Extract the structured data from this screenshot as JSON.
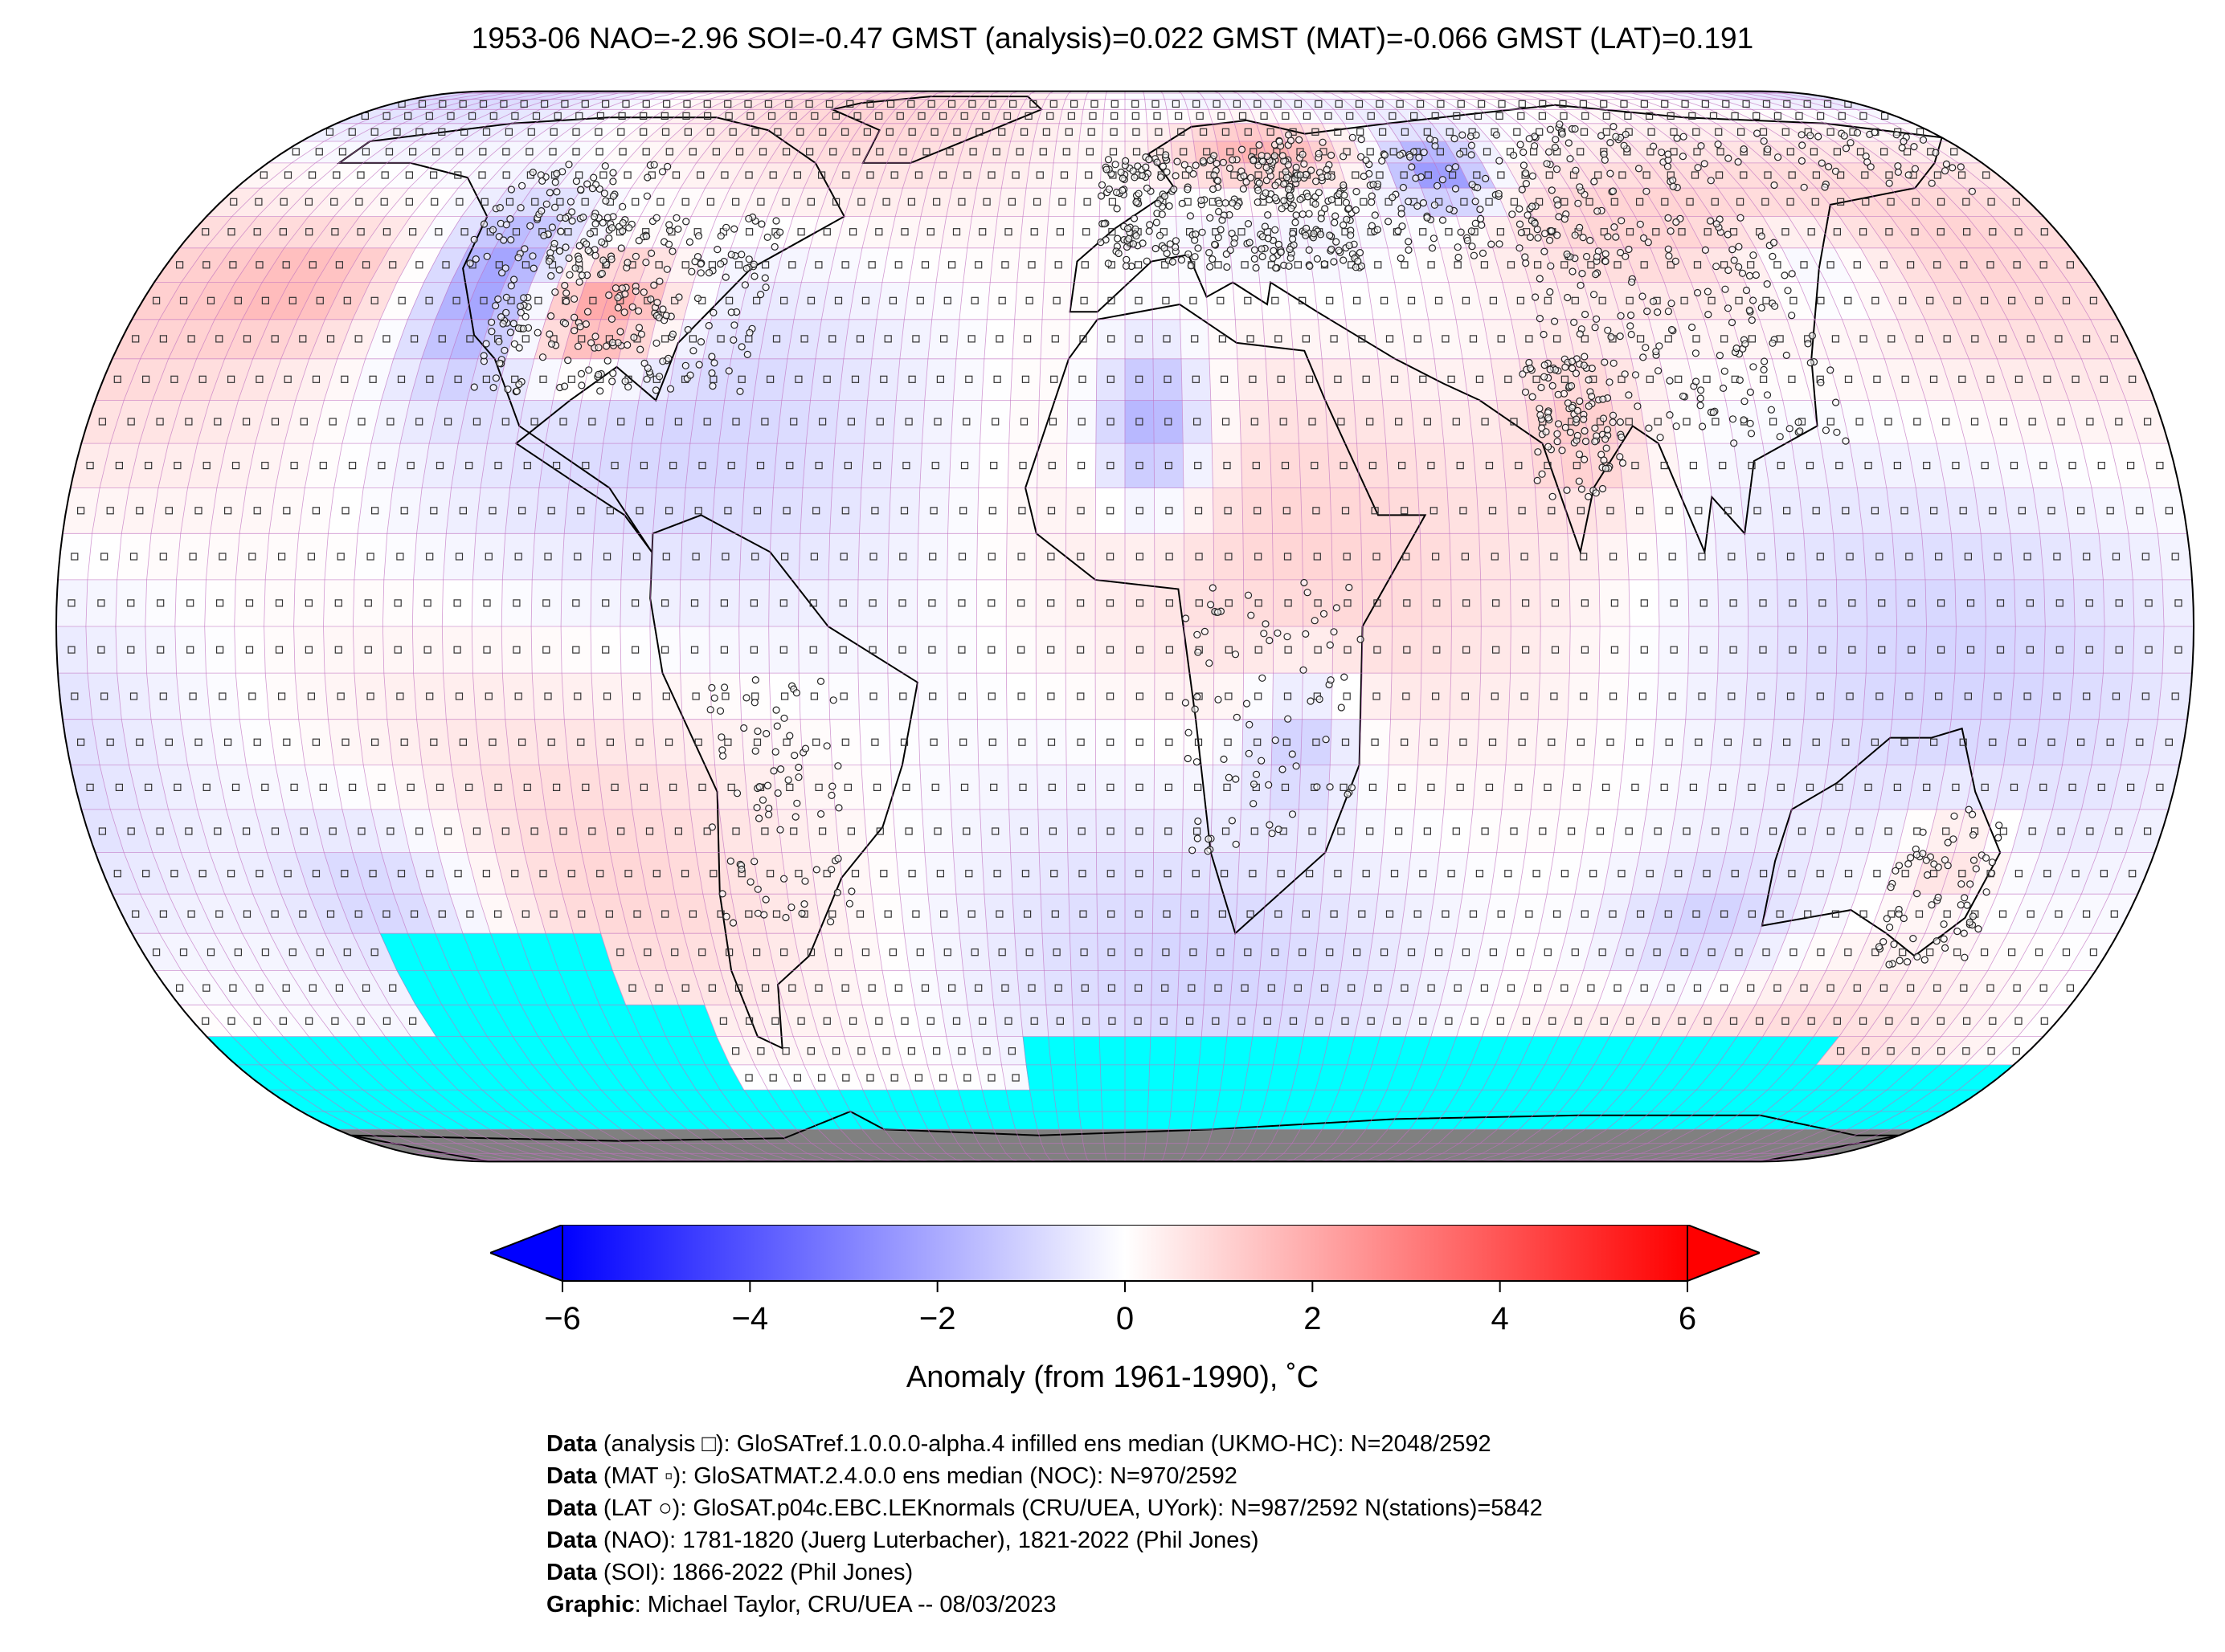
{
  "title": "1953-06 NAO=-2.96 SOI=-0.47 GMST (analysis)=0.022 GMST (MAT)=-0.066 GMST (LAT)=0.191",
  "map": {
    "projection": "Robinson",
    "variable": "temperature anomaly",
    "colors": {
      "negative_max": "#0000ff",
      "zero": "#ffffff",
      "positive_max": "#ff0000",
      "no_data_fill": "#00ffff",
      "land_mask": "#808080",
      "grid": "#c070c0"
    },
    "markers": {
      "analysis": "square",
      "MAT": "filled-square",
      "LAT": "circle"
    }
  },
  "colorbar": {
    "vmin": -6,
    "vmax": 6,
    "ticks": [
      "−6",
      "−4",
      "−2",
      "0",
      "2",
      "4",
      "6"
    ],
    "tick_values": [
      -6,
      -4,
      -2,
      0,
      2,
      4,
      6
    ],
    "label": "Anomaly (from 1961-1990), ˚C",
    "extend": "both"
  },
  "credits": [
    {
      "key": "Data",
      "rest": " (analysis □): GloSATref.1.0.0.0-alpha.4 infilled ens median (UKMO-HC): N=2048/2592"
    },
    {
      "key": "Data",
      "rest": " (MAT ▫): GloSATMAT.2.4.0.0 ens median (NOC): N=970/2592"
    },
    {
      "key": "Data",
      "rest": " (LAT ○): GloSAT.p04c.EBC.LEKnormals (CRU/UEA, UYork): N=987/2592 N(stations)=5842"
    },
    {
      "key": "Data",
      "rest": " (NAO): 1781-1820 (Juerg Luterbacher), 1821-2022 (Phil Jones)"
    },
    {
      "key": "Data",
      "rest": " (SOI): 1866-2022 (Phil Jones)"
    },
    {
      "key": "Graphic",
      "rest": ": Michael Taylor, CRU/UEA -- 08/03/2023"
    }
  ]
}
